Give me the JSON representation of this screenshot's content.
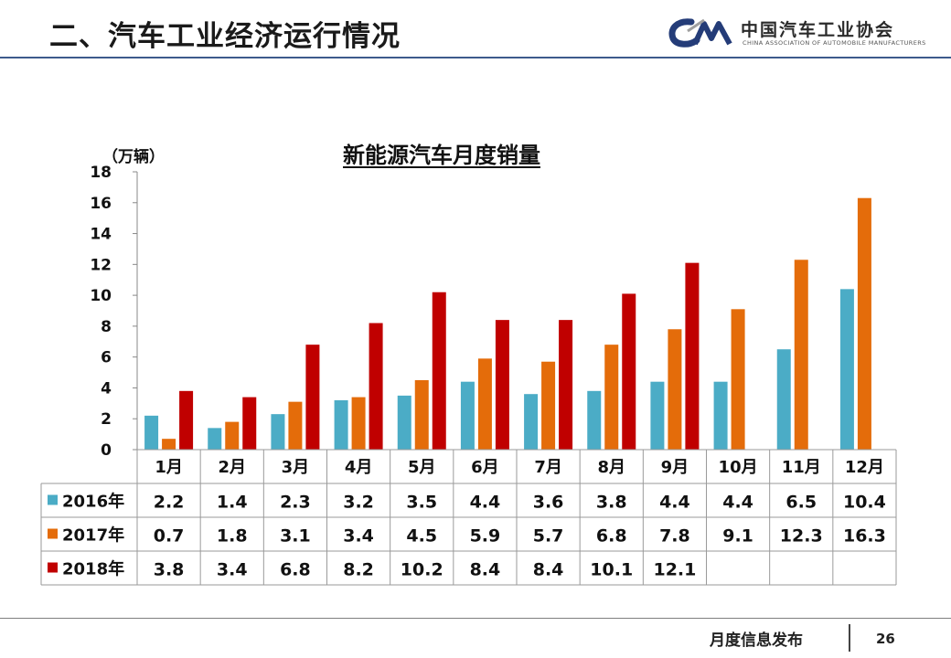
{
  "slide": {
    "title": "二、汽车工业经济运行情况",
    "logo_cn": "中国汽车工业协会",
    "logo_en": "CHINA ASSOCIATION OF AUTOMOBILE MANUFACTURERS",
    "footer_label": "月度信息发布",
    "page_number": "26"
  },
  "chart_data": {
    "type": "bar",
    "title": "新能源汽车月度销量",
    "unit_label": "（万辆）",
    "categories": [
      "1月",
      "2月",
      "3月",
      "4月",
      "5月",
      "6月",
      "7月",
      "8月",
      "9月",
      "10月",
      "11月",
      "12月"
    ],
    "series": [
      {
        "name": "2016年",
        "color": "#4bacc6",
        "values": [
          2.2,
          1.4,
          2.3,
          3.2,
          3.5,
          4.4,
          3.6,
          3.8,
          4.4,
          4.4,
          6.5,
          10.4
        ]
      },
      {
        "name": "2017年",
        "color": "#e46c0a",
        "values": [
          0.7,
          1.8,
          3.1,
          3.4,
          4.5,
          5.9,
          5.7,
          6.8,
          7.8,
          9.1,
          12.3,
          16.3
        ]
      },
      {
        "name": "2018年",
        "color": "#c00000",
        "values": [
          3.8,
          3.4,
          6.8,
          8.2,
          10.2,
          8.4,
          8.4,
          10.1,
          12.1,
          null,
          null,
          null
        ]
      }
    ],
    "ylim": [
      0,
      18
    ],
    "yticks": [
      0,
      2,
      4,
      6,
      8,
      10,
      12,
      14,
      16,
      18
    ],
    "grid": false,
    "legend": "data-table-left"
  }
}
